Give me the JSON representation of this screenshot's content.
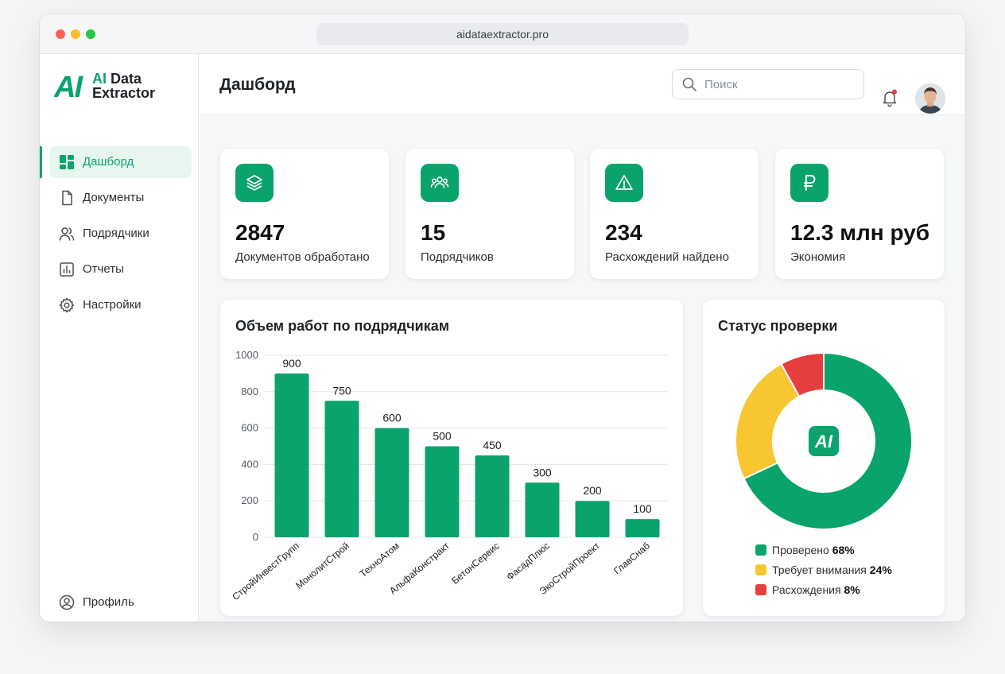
{
  "browser": {
    "url": "aidataextractor.pro"
  },
  "brand": {
    "mark": "AI",
    "name_line1_accent": "AI",
    "name_line1_rest": " Data",
    "name_line2": "Extractor",
    "badge": "AI"
  },
  "sidebar": {
    "items": [
      {
        "label": "Дашборд",
        "icon": "dashboard-icon",
        "active": true
      },
      {
        "label": "Документы",
        "icon": "document-icon",
        "active": false
      },
      {
        "label": "Подрядчики",
        "icon": "users-icon",
        "active": false
      },
      {
        "label": "Отчеты",
        "icon": "report-icon",
        "active": false
      },
      {
        "label": "Настройки",
        "icon": "gear-icon",
        "active": false
      }
    ],
    "profile": {
      "label": "Профиль",
      "icon": "profile-icon"
    }
  },
  "header": {
    "title": "Дашборд",
    "search_placeholder": "Поиск",
    "has_notification": true
  },
  "stats": [
    {
      "value": "2847",
      "label": "Документов обработано",
      "icon": "layers-icon"
    },
    {
      "value": "15",
      "label": "Подрядчиков",
      "icon": "team-icon"
    },
    {
      "value": "234",
      "label": "Расхождений найдено",
      "icon": "warning-icon"
    },
    {
      "value": "12.3 млн руб",
      "label": "Экономия",
      "icon": "ruble-icon"
    }
  ],
  "colors": {
    "accent": "#0aa36b",
    "warning": "#f8c630",
    "danger": "#e53e3e"
  },
  "chart_data": [
    {
      "type": "bar",
      "title": "Объем работ по подрядчикам",
      "categories": [
        "СтройИнвестГрупп",
        "МонолитСтрой",
        "ТехноАтом",
        "АльфаКонстракт",
        "БетонСервис",
        "ФасадПлюс",
        "ЭкоСтройПроект",
        "ГлавСнаб"
      ],
      "values": [
        900,
        750,
        600,
        500,
        450,
        300,
        200,
        100
      ],
      "ylim": [
        0,
        1000
      ],
      "yticks": [
        0,
        200,
        400,
        600,
        800,
        1000
      ],
      "grid": true,
      "color": "#0aa36b"
    },
    {
      "type": "pie",
      "title": "Статус проверки",
      "donut": true,
      "slices": [
        {
          "label": "Проверено",
          "value": 68,
          "display": "68%",
          "color": "#0aa36b"
        },
        {
          "label": "Требует внимания",
          "value": 24,
          "display": "24%",
          "color": "#f8c630"
        },
        {
          "label": "Расхождения",
          "value": 8,
          "display": "8%",
          "color": "#e53e3e"
        }
      ],
      "legend": "bottom"
    }
  ]
}
